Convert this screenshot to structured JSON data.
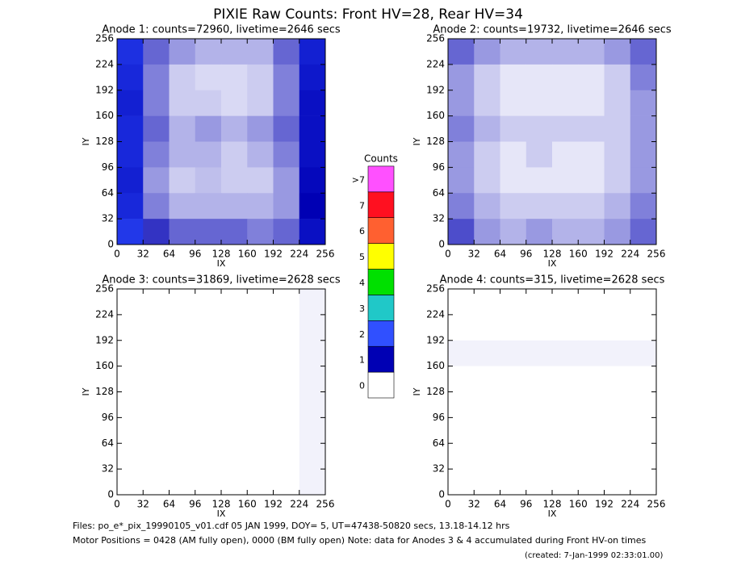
{
  "chart_data": {
    "type": "heatmap",
    "title": "PIXIE Raw Counts:  Front HV=28, Rear HV=34",
    "panels": [
      {
        "title": "Anode 1: counts=72960, livetime=2646 secs",
        "xlabel": "IX",
        "ylabel": "IY",
        "xlim": [
          0,
          256
        ],
        "ylim": [
          0,
          256
        ],
        "xticks": [
          0,
          32,
          64,
          96,
          128,
          160,
          192,
          224,
          256
        ],
        "yticks": [
          0,
          32,
          64,
          96,
          128,
          160,
          192,
          224,
          256
        ],
        "z": [
          [
            1.6,
            0.6,
            0.4,
            0.3,
            0.3,
            0.3,
            0.6,
            1.4
          ],
          [
            1.5,
            0.5,
            0.2,
            0.15,
            0.15,
            0.2,
            0.5,
            1.3
          ],
          [
            1.4,
            0.5,
            0.2,
            0.2,
            0.15,
            0.2,
            0.5,
            1.2
          ],
          [
            1.5,
            0.6,
            0.3,
            0.4,
            0.3,
            0.4,
            0.6,
            1.2
          ],
          [
            1.5,
            0.5,
            0.3,
            0.3,
            0.2,
            0.3,
            0.5,
            1.2
          ],
          [
            1.4,
            0.4,
            0.2,
            0.25,
            0.2,
            0.2,
            0.4,
            1.1
          ],
          [
            1.5,
            0.5,
            0.3,
            0.3,
            0.3,
            0.3,
            0.4,
            1.0
          ],
          [
            1.7,
            0.8,
            0.6,
            0.6,
            0.6,
            0.5,
            0.6,
            1.2
          ]
        ]
      },
      {
        "title": "Anode 2: counts=19732, livetime=2646 secs",
        "xlabel": "IX",
        "ylabel": "IY",
        "xlim": [
          0,
          256
        ],
        "ylim": [
          0,
          256
        ],
        "xticks": [
          0,
          32,
          64,
          96,
          128,
          160,
          192,
          224,
          256
        ],
        "yticks": [
          0,
          32,
          64,
          96,
          128,
          160,
          192,
          224,
          256
        ],
        "z": [
          [
            0.6,
            0.4,
            0.3,
            0.3,
            0.3,
            0.3,
            0.4,
            0.6
          ],
          [
            0.4,
            0.2,
            0.1,
            0.1,
            0.1,
            0.1,
            0.2,
            0.5
          ],
          [
            0.4,
            0.2,
            0.1,
            0.1,
            0.1,
            0.1,
            0.2,
            0.4
          ],
          [
            0.5,
            0.3,
            0.2,
            0.2,
            0.2,
            0.2,
            0.2,
            0.4
          ],
          [
            0.4,
            0.2,
            0.1,
            0.2,
            0.1,
            0.1,
            0.2,
            0.4
          ],
          [
            0.4,
            0.2,
            0.1,
            0.1,
            0.1,
            0.1,
            0.2,
            0.4
          ],
          [
            0.5,
            0.3,
            0.2,
            0.2,
            0.2,
            0.2,
            0.3,
            0.5
          ],
          [
            0.7,
            0.4,
            0.3,
            0.4,
            0.3,
            0.3,
            0.4,
            0.6
          ]
        ]
      },
      {
        "title": "Anode 3: counts=31869, livetime=2628 secs",
        "xlabel": "IX",
        "ylabel": "IY",
        "xlim": [
          0,
          256
        ],
        "ylim": [
          0,
          256
        ],
        "xticks": [
          0,
          32,
          64,
          96,
          128,
          160,
          192,
          224,
          256
        ],
        "yticks": [
          0,
          32,
          64,
          96,
          128,
          160,
          192,
          224,
          256
        ],
        "z": [
          [
            0,
            0,
            0,
            0,
            0,
            0,
            0,
            0.05
          ],
          [
            0,
            0,
            0,
            0,
            0,
            0,
            0,
            0.05
          ],
          [
            0,
            0,
            0,
            0,
            0,
            0,
            0,
            0.05
          ],
          [
            0,
            0,
            0,
            0,
            0,
            0,
            0,
            0.05
          ],
          [
            0,
            0,
            0,
            0,
            0,
            0,
            0,
            0.05
          ],
          [
            0,
            0,
            0,
            0,
            0,
            0,
            0,
            0.05
          ],
          [
            0,
            0,
            0,
            0,
            0,
            0,
            0,
            0.05
          ],
          [
            0,
            0,
            0,
            0,
            0,
            0,
            0,
            0.05
          ]
        ]
      },
      {
        "title": "Anode 4: counts=315, livetime=2628 secs",
        "xlabel": "IX",
        "ylabel": "IY",
        "xlim": [
          0,
          256
        ],
        "ylim": [
          0,
          256
        ],
        "xticks": [
          0,
          32,
          64,
          96,
          128,
          160,
          192,
          224,
          256
        ],
        "yticks": [
          0,
          32,
          64,
          96,
          128,
          160,
          192,
          224,
          256
        ],
        "z": [
          [
            0,
            0,
            0,
            0,
            0,
            0,
            0,
            0
          ],
          [
            0,
            0,
            0,
            0,
            0,
            0,
            0,
            0
          ],
          [
            0.05,
            0.05,
            0.05,
            0.05,
            0.05,
            0.05,
            0.05,
            0.05
          ],
          [
            0,
            0,
            0,
            0,
            0,
            0,
            0,
            0
          ],
          [
            0,
            0,
            0,
            0,
            0,
            0,
            0,
            0
          ],
          [
            0,
            0,
            0,
            0,
            0,
            0,
            0,
            0
          ],
          [
            0,
            0,
            0,
            0,
            0,
            0,
            0,
            0
          ],
          [
            0,
            0,
            0,
            0,
            0,
            0,
            0,
            0
          ]
        ]
      }
    ],
    "colorbar": {
      "title": "Counts",
      "labels": [
        "0",
        "1",
        "2",
        "3",
        "4",
        "5",
        "6",
        "7",
        ">7"
      ],
      "colors": [
        "#ffffff",
        "#0000b4",
        "#3050ff",
        "#20c8c8",
        "#00e000",
        "#ffff00",
        "#ff6030",
        "#ff1020",
        "#ff50ff"
      ]
    },
    "notes": [
      "Files: po_e*_pix_19990105_v01.cdf    05 JAN 1999, DOY=  5, UT=47438-50820 secs, 13.18-14.12 hrs",
      "Motor Positions = 0428 (AM fully open), 0000 (BM fully open)    Note: data for Anodes 3 & 4 accumulated during Front HV-on times",
      "(created:  7-Jan-1999 02:33:01.00)"
    ]
  }
}
